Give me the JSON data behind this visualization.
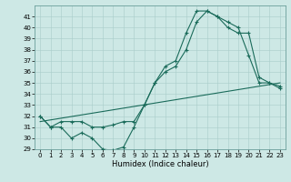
{
  "xlabel": "Humidex (Indice chaleur)",
  "xlim": [
    -0.5,
    23.5
  ],
  "ylim": [
    29,
    42
  ],
  "yticks": [
    29,
    30,
    31,
    32,
    33,
    34,
    35,
    36,
    37,
    38,
    39,
    40,
    41
  ],
  "xticks": [
    0,
    1,
    2,
    3,
    4,
    5,
    6,
    7,
    8,
    9,
    10,
    11,
    12,
    13,
    14,
    15,
    16,
    17,
    18,
    19,
    20,
    21,
    22,
    23
  ],
  "bg_color": "#cde8e5",
  "line_color": "#1a6b5a",
  "line1_x": [
    0,
    1,
    2,
    3,
    4,
    5,
    6,
    7,
    8,
    9,
    10,
    11,
    12,
    13,
    14,
    15,
    16,
    17,
    18,
    19,
    20,
    21,
    22,
    23
  ],
  "line1_y": [
    32,
    31,
    31,
    30,
    30.5,
    30,
    29,
    28.9,
    29.2,
    31,
    33,
    35,
    36.5,
    37,
    39.5,
    41.5,
    41.5,
    41,
    40.5,
    40,
    37.5,
    35,
    35,
    34.5
  ],
  "line2_x": [
    0,
    1,
    2,
    3,
    4,
    5,
    6,
    7,
    8,
    9,
    10,
    11,
    12,
    13,
    14,
    15,
    16,
    17,
    18,
    19,
    20,
    21,
    22,
    23
  ],
  "line2_y": [
    32,
    31,
    31.5,
    31.5,
    31.5,
    31,
    31,
    31.2,
    31.5,
    31.5,
    33,
    35,
    36,
    36.5,
    38,
    40.5,
    41.5,
    41,
    40,
    39.5,
    39.5,
    35.5,
    35,
    34.7
  ],
  "line3_x": [
    0,
    23
  ],
  "line3_y": [
    31.5,
    35.0
  ]
}
